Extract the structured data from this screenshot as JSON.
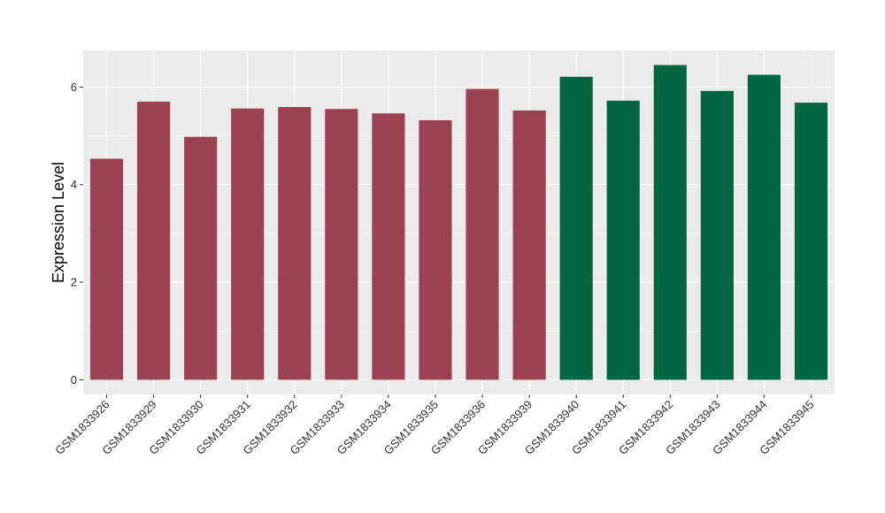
{
  "chart_data": {
    "type": "bar",
    "title": "",
    "xlabel": "",
    "ylabel": "Expression Level",
    "ylim": [
      -0.3,
      6.75
    ],
    "yticks": [
      0,
      2,
      4,
      6
    ],
    "grid": true,
    "legend": "none",
    "categories": [
      "GSM1833926",
      "GSM1833929",
      "GSM1833930",
      "GSM1833931",
      "GSM1833932",
      "GSM1833933",
      "GSM1833934",
      "GSM1833935",
      "GSM1833936",
      "GSM1833939",
      "GSM1833940",
      "GSM1833941",
      "GSM1833942",
      "GSM1833943",
      "GSM1833944",
      "GSM1833945"
    ],
    "values": [
      4.53,
      5.7,
      4.98,
      5.56,
      5.59,
      5.55,
      5.46,
      5.32,
      5.96,
      5.52,
      6.21,
      5.72,
      6.45,
      5.92,
      6.25,
      5.68
    ],
    "groups": [
      0,
      0,
      0,
      0,
      0,
      0,
      0,
      0,
      0,
      0,
      1,
      1,
      1,
      1,
      1,
      1
    ],
    "group_colors": [
      "#9a4250",
      "#006541"
    ],
    "panel_background": "#ebebeb"
  }
}
